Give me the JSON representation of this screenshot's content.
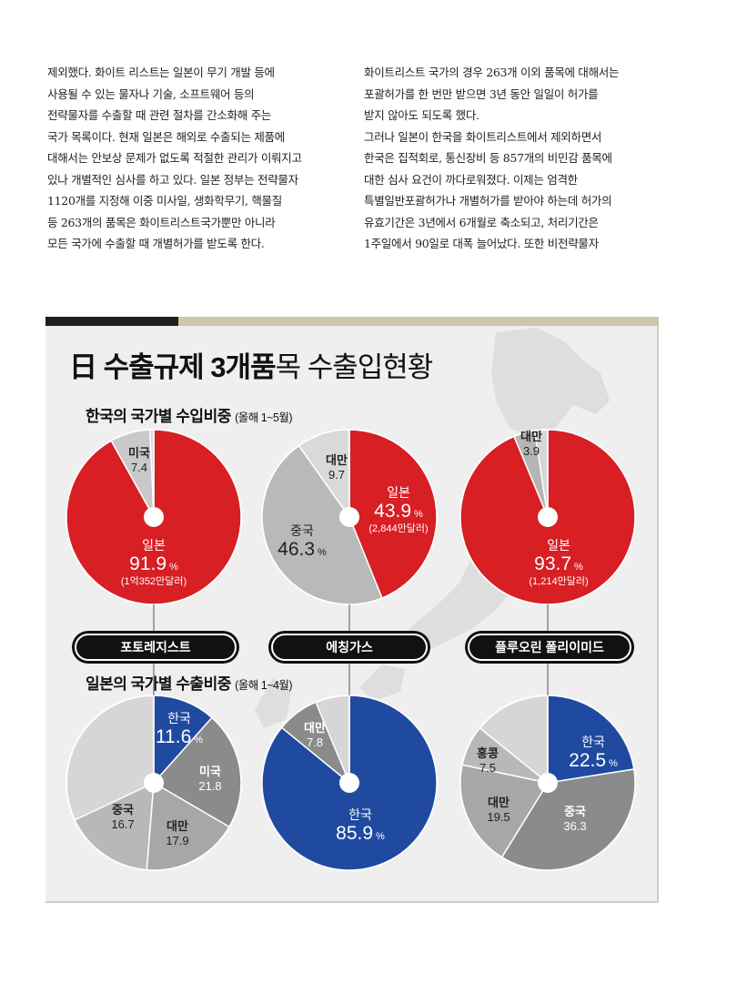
{
  "article": {
    "left_lines": [
      "제외했다. 화이트 리스트는 일본이 무기 개발 등에",
      "사용될 수 있는 물자나 기술, 소프트웨어 등의",
      "전략물자를 수출할 때 관련 절차를 간소화해 주는",
      "국가 목록이다. 현재 일본은 해외로 수출되는 제품에",
      "대해서는 안보상 문제가 없도록 적절한 관리가 이뤄지고",
      "있나 개별적인 심사를 하고 있다. 일본 정부는 전략물자",
      "1120개를 지정해 이중 미사일, 생화학무기, 핵물질",
      "등 263개의 품목은 화이트리스트국가뿐만 아니라",
      "모든 국가에 수출할 때 개별허가를 받도록 한다."
    ],
    "right_lines": [
      "화이트리스트 국가의 경우 263개 이외 품목에 대해서는",
      "포괄허가를 한 번만 받으면 3년 동안 일일이 허가를",
      "받지 않아도 되도록 했다.",
      "그러나 일본이 한국을 화이트리스트에서 제외하면서",
      "한국은 집적회로, 통신장비 등 857개의 비민감 품목에",
      "대한 심사 요건이 까다로워졌다. 이제는 엄격한",
      "특별일반포괄허가나 개별허가를 받아야 하는데 허가의",
      "유효기간은 3년에서 6개월로 축소되고, 처리기간은",
      "1주일에서 90일로 대폭 늘어났다. 또한 비전략물자"
    ]
  },
  "panel": {
    "title_bold": "日 수출규제 3개품",
    "title_regular": "목 수출입현황",
    "import_heading": "한국의 국가별 수입비중",
    "import_period": "(올해 1~5월)",
    "export_heading": "일본의 국가별 수출비중",
    "export_period": "(올해 1~4월)"
  },
  "colors": {
    "japan": "#d71f24",
    "korea": "#1f4aa0",
    "gray_light": "#c9c9c9",
    "gray_mid": "#a7a7a7",
    "gray_dark": "#8b8b8b",
    "pill": "#111111",
    "bar_dark": "#1f1f1f",
    "bar_tan": "#cfc6a8"
  },
  "chart_data": [
    {
      "type": "pie",
      "product": "포토레지스트",
      "title": "한국의 국가별 수입비중",
      "slices": [
        {
          "name": "일본",
          "value": 91.9,
          "unit": "%",
          "amount": "(1억352만달러)",
          "color": "#d71f24"
        },
        {
          "name": "미국",
          "value": 7.4,
          "color": "#c9c9c9"
        }
      ]
    },
    {
      "type": "pie",
      "product": "에칭가스",
      "title": "한국의 국가별 수입비중",
      "slices": [
        {
          "name": "일본",
          "value": 43.9,
          "unit": "%",
          "amount": "(2,844만달러)",
          "color": "#d71f24"
        },
        {
          "name": "중국",
          "value": 46.3,
          "unit": "%",
          "color": "#b9b9b9"
        },
        {
          "name": "대만",
          "value": 9.7,
          "color": "#d9d9d9"
        }
      ]
    },
    {
      "type": "pie",
      "product": "플루오린 폴리이미드",
      "title": "한국의 국가별 수입비중",
      "slices": [
        {
          "name": "일본",
          "value": 93.7,
          "unit": "%",
          "amount": "(1,214만달러)",
          "color": "#d71f24"
        },
        {
          "name": "대만",
          "value": 3.9,
          "color": "#b5b5b5"
        }
      ]
    },
    {
      "type": "pie",
      "product": "포토레지스트",
      "title": "일본의 국가별 수출비중",
      "slices": [
        {
          "name": "한국",
          "value": 11.6,
          "unit": "%",
          "color": "#1f4aa0"
        },
        {
          "name": "미국",
          "value": 21.8,
          "color": "#8b8b8b"
        },
        {
          "name": "대만",
          "value": 17.9,
          "color": "#a7a7a7"
        },
        {
          "name": "중국",
          "value": 16.7,
          "color": "#b8b8b8"
        }
      ]
    },
    {
      "type": "pie",
      "product": "에칭가스",
      "title": "일본의 국가별 수출비중",
      "slices": [
        {
          "name": "한국",
          "value": 85.9,
          "unit": "%",
          "color": "#1f4aa0"
        },
        {
          "name": "대만",
          "value": 7.8,
          "color": "#8b8b8b"
        }
      ]
    },
    {
      "type": "pie",
      "product": "플루오린 폴리이미드",
      "title": "일본의 국가별 수출비중",
      "slices": [
        {
          "name": "한국",
          "value": 22.5,
          "unit": "%",
          "color": "#1f4aa0"
        },
        {
          "name": "중국",
          "value": 36.3,
          "color": "#8b8b8b"
        },
        {
          "name": "대만",
          "value": 19.5,
          "color": "#a7a7a7"
        },
        {
          "name": "홍콩",
          "value": 7.5,
          "color": "#b8b8b8"
        }
      ]
    }
  ],
  "products": [
    "포토레지스트",
    "에칭가스",
    "플루오린 폴리이미드"
  ]
}
